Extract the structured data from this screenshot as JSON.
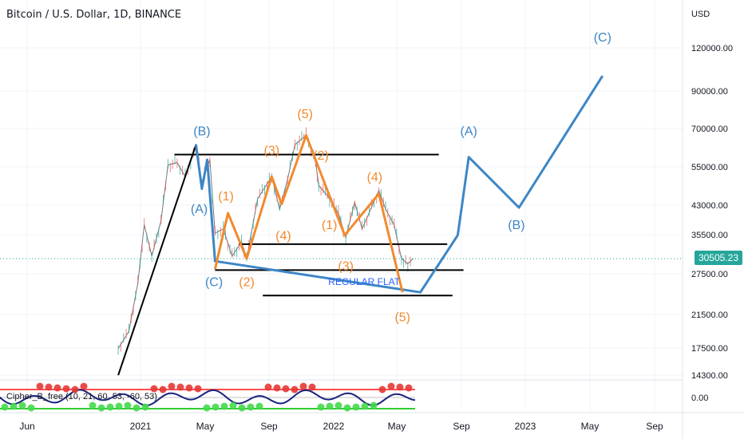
{
  "header": {
    "title": "Bitcoin / U.S. Dollar, 1D, BINANCE",
    "currency": "USD",
    "last_price": "30505.23"
  },
  "indicator": {
    "label": "Cipher_B_free (10, 21, 60, 53, -60, 53)",
    "zero_label": "0.00"
  },
  "chart_data": {
    "type": "line",
    "title": "Bitcoin / U.S. Dollar, 1D, BINANCE",
    "y_unit": "USD",
    "y_scale": "log",
    "y_ticks": [
      "120000.00",
      "90000.00",
      "70000.00",
      "55000.00",
      "43000.00",
      "35500.00",
      "27500.00",
      "21500.00",
      "17500.00",
      "14300.00"
    ],
    "x_ticks": [
      "Jun",
      "2021",
      "May",
      "Sep",
      "2022",
      "May",
      "Sep",
      "2023",
      "May",
      "Sep"
    ],
    "last_price": 30505.23,
    "series": [
      {
        "role": "price-path-approx",
        "color": "#2a2e39",
        "points": [
          [
            "2020-11-20",
            17000
          ],
          [
            "2020-12-10",
            19000
          ],
          [
            "2020-12-27",
            26000
          ],
          [
            "2021-01-08",
            38000
          ],
          [
            "2021-01-22",
            31000
          ],
          [
            "2021-02-08",
            39000
          ],
          [
            "2021-02-21",
            56000
          ],
          [
            "2021-03-10",
            57000
          ],
          [
            "2021-03-25",
            52000
          ],
          [
            "2021-04-14",
            63000
          ],
          [
            "2021-04-25",
            50000
          ],
          [
            "2021-05-10",
            58000
          ],
          [
            "2021-05-20",
            36000
          ],
          [
            "2021-06-05",
            37000
          ],
          [
            "2021-06-22",
            31000
          ],
          [
            "2021-07-10",
            34000
          ],
          [
            "2021-07-20",
            30500
          ],
          [
            "2021-08-10",
            45000
          ],
          [
            "2021-09-06",
            52000
          ],
          [
            "2021-09-21",
            42000
          ],
          [
            "2021-10-06",
            51000
          ],
          [
            "2021-10-20",
            64000
          ],
          [
            "2021-11-10",
            68000
          ],
          [
            "2021-11-28",
            57000
          ],
          [
            "2021-12-04",
            49000
          ],
          [
            "2021-12-20",
            46000
          ],
          [
            "2022-01-10",
            41000
          ],
          [
            "2022-01-24",
            35000
          ],
          [
            "2022-02-10",
            44000
          ],
          [
            "2022-02-24",
            37000
          ],
          [
            "2022-03-28",
            47500
          ],
          [
            "2022-04-10",
            42000
          ],
          [
            "2022-04-26",
            38000
          ],
          [
            "2022-05-10",
            30500
          ],
          [
            "2022-05-22",
            29500
          ],
          [
            "2022-06-01",
            30500
          ]
        ]
      }
    ],
    "wave_blue": {
      "color": "#3d86c6",
      "points": [
        [
          "2021-04-14",
          64000
        ],
        [
          "2021-04-25",
          48000
        ],
        [
          "2021-05-05",
          58000
        ],
        [
          "2021-05-20",
          30000
        ],
        [
          "2022-06-15",
          24500
        ],
        [
          "2022-08-25",
          35500
        ],
        [
          "2022-09-15",
          59000
        ],
        [
          "2022-12-20",
          42500
        ],
        [
          "2023-05-25",
          100000
        ]
      ],
      "labels": [
        {
          "text": "(B)",
          "at": [
            "2021-04-25",
            68000
          ]
        },
        {
          "text": "(A)",
          "at": [
            "2021-04-20",
            41000
          ]
        },
        {
          "text": "(C)",
          "at": [
            "2021-05-18",
            25500
          ]
        },
        {
          "text": "(A)",
          "at": [
            "2022-09-15",
            68000
          ]
        },
        {
          "text": "(B)",
          "at": [
            "2022-12-15",
            37000
          ]
        },
        {
          "text": "(C)",
          "at": [
            "2023-05-25",
            125000
          ]
        }
      ]
    },
    "wave_orange": {
      "color": "#f28a2e",
      "points": [
        [
          "2021-05-20",
          28500
        ],
        [
          "2021-06-14",
          41000
        ],
        [
          "2021-07-20",
          30500
        ],
        [
          "2021-09-06",
          52000
        ],
        [
          "2021-09-25",
          43500
        ],
        [
          "2021-11-10",
          68000
        ],
        [
          "2022-01-22",
          35500
        ],
        [
          "2022-03-28",
          46500
        ],
        [
          "2022-05-12",
          24500
        ]
      ],
      "labels": [
        {
          "text": "(1)",
          "at": [
            "2021-06-10",
            44500
          ]
        },
        {
          "text": "(2)",
          "at": [
            "2021-07-20",
            25500
          ]
        },
        {
          "text": "(3)",
          "at": [
            "2021-09-06",
            60000
          ]
        },
        {
          "text": "(4)",
          "at": [
            "2021-09-28",
            34500
          ]
        },
        {
          "text": "(5)",
          "at": [
            "2021-11-08",
            76000
          ]
        },
        {
          "text": "(2)",
          "at": [
            "2021-12-08",
            58000
          ]
        },
        {
          "text": "(1)",
          "at": [
            "2021-12-24",
            37000
          ]
        },
        {
          "text": "(3)",
          "at": [
            "2022-01-24",
            28300
          ]
        },
        {
          "text": "(4)",
          "at": [
            "2022-03-20",
            50500
          ]
        },
        {
          "text": "(5)",
          "at": [
            "2022-05-12",
            20300
          ]
        }
      ]
    },
    "trendline_black": {
      "points": [
        [
          "2020-11-20",
          14300
        ],
        [
          "2021-04-14",
          64000
        ]
      ]
    },
    "horizontal_levels": [
      {
        "value": 60000,
        "from": "2021-03-05",
        "to": "2022-07-20"
      },
      {
        "value": 33500,
        "from": "2021-07-05",
        "to": "2022-08-05"
      },
      {
        "value": 28300,
        "from": "2021-05-20",
        "to": "2022-09-05"
      },
      {
        "value": 24000,
        "from": "2021-08-20",
        "to": "2022-08-15"
      }
    ],
    "annotations": [
      {
        "text": "REGULAR FLAT",
        "at": [
          "2022-02-28",
          25700
        ],
        "color": "#2962ff"
      }
    ],
    "grid": true
  }
}
